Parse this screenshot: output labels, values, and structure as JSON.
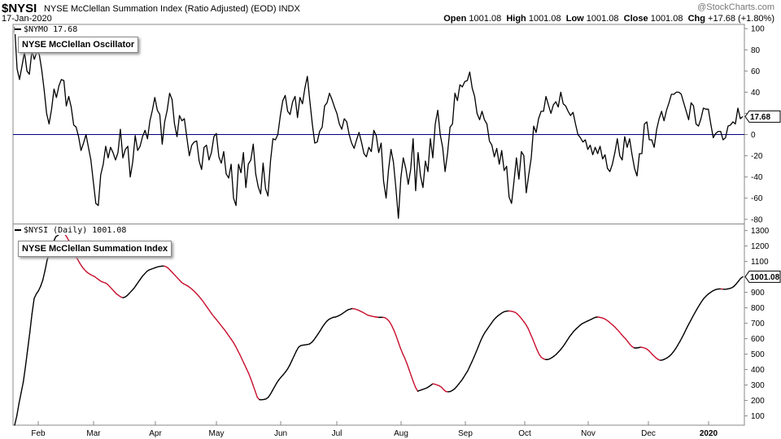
{
  "header": {
    "symbol": "$NYSI",
    "description": "NYSE McClellan Summation Index (Ratio Adjusted) (EOD)  INDX",
    "date": "17-Jan-2020",
    "watermark": "@StockCharts.com",
    "open_label": "Open",
    "open": "1001.08",
    "high_label": "High",
    "high": "1001.08",
    "low_label": "Low",
    "low": "1001.08",
    "close_label": "Close",
    "close": "1001.08",
    "chg_label": "Chg",
    "chg": "+17.68 (+1.80%)"
  },
  "colors": {
    "line": "#000000",
    "falling": "#c8102e",
    "zero_line": "#000080",
    "grid": "#cccccc"
  },
  "chart_data": [
    {
      "type": "line",
      "legend_label": "$NYMO 17.68",
      "box_label": "NYSE McClellan Oscillator",
      "last_value_label": "17.68",
      "x_tick_labels": [
        "Feb",
        "Mar",
        "Apr",
        "May",
        "Jun",
        "Jul",
        "Aug",
        "Sep",
        "Oct",
        "Nov",
        "Dec",
        "2020"
      ],
      "ylim": [
        -84,
        104
      ],
      "y_ticks": [
        100,
        80,
        60,
        40,
        20,
        0,
        -20,
        -40,
        -60,
        -80
      ],
      "reference_line": 0,
      "grid": false,
      "y": [
        102,
        62,
        52,
        65,
        78,
        60,
        57,
        79,
        71,
        78,
        76,
        61,
        42,
        20,
        10,
        24,
        43,
        35,
        46,
        52,
        51,
        27,
        36,
        26,
        9,
        7,
        -2,
        -15,
        -8,
        0,
        -12,
        -24,
        -45,
        -65,
        -67,
        -38,
        -28,
        -11,
        -22,
        -12,
        -17,
        -24,
        -17,
        5,
        -22,
        -14,
        -11,
        -40,
        -26,
        -1,
        -15,
        -11,
        -2,
        4,
        -4,
        13,
        23,
        35,
        23,
        19,
        -9,
        12,
        23,
        39,
        33,
        10,
        -2,
        18,
        13,
        15,
        -3,
        -20,
        -10,
        -7,
        -6,
        -25,
        -33,
        -12,
        -10,
        -24,
        -17,
        -2,
        1,
        -21,
        -27,
        -16,
        -37,
        -41,
        -28,
        -60,
        -67,
        -28,
        -36,
        -17,
        -50,
        -28,
        -24,
        -9,
        -37,
        -49,
        -56,
        -27,
        -51,
        -58,
        -25,
        -4,
        -5,
        0,
        18,
        32,
        37,
        22,
        19,
        31,
        36,
        16,
        35,
        29,
        44,
        55,
        32,
        10,
        -8,
        -7,
        3,
        7,
        27,
        30,
        39,
        33,
        26,
        20,
        10,
        5,
        15,
        12,
        0,
        -8,
        -13,
        -5,
        2,
        -7,
        -18,
        -21,
        -12,
        -16,
        4,
        -1,
        -17,
        -8,
        -44,
        -60,
        -33,
        -14,
        -26,
        -51,
        -79,
        -41,
        -22,
        -32,
        -47,
        -33,
        -4,
        -53,
        -17,
        -39,
        -50,
        -25,
        -35,
        -4,
        -22,
        10,
        23,
        0,
        -12,
        -35,
        -17,
        7,
        10,
        39,
        32,
        47,
        45,
        50,
        51,
        59,
        44,
        36,
        20,
        14,
        22,
        14,
        10,
        -6,
        -10,
        -21,
        -13,
        -28,
        -15,
        -34,
        -30,
        -59,
        -65,
        -44,
        -22,
        -42,
        -16,
        -20,
        -55,
        -38,
        -22,
        8,
        2,
        15,
        22,
        22,
        36,
        28,
        20,
        28,
        31,
        26,
        40,
        29,
        27,
        22,
        18,
        21,
        10,
        0,
        -3,
        -7,
        -5,
        -14,
        -10,
        -19,
        -12,
        -18,
        -11,
        -23,
        -19,
        -32,
        -35,
        -28,
        -17,
        -4,
        -20,
        -24,
        -2,
        -12,
        -4,
        -19,
        -32,
        -39,
        -18,
        -18,
        10,
        12,
        -5,
        -5,
        -12,
        5,
        15,
        22,
        13,
        23,
        30,
        38,
        38,
        40,
        40,
        38,
        30,
        22,
        14,
        30,
        27,
        10,
        8,
        15,
        25,
        24,
        24,
        10,
        -3,
        1,
        3,
        3,
        -5,
        -3,
        8,
        9,
        12,
        10,
        25,
        15,
        17
      ]
    },
    {
      "type": "line",
      "legend_label": "$NYSI (Daily) 1001.08",
      "box_label": "NYSE McClellan Summation Index",
      "last_value_label": "1001.08",
      "x_tick_labels": [
        "Feb",
        "Mar",
        "Apr",
        "May",
        "Jun",
        "Jul",
        "Aug",
        "Sep",
        "Oct",
        "Nov",
        "Dec",
        "2020"
      ],
      "ylim": [
        40,
        1340
      ],
      "y_ticks": [
        1300,
        1200,
        1100,
        1000,
        900,
        800,
        700,
        600,
        500,
        400,
        300,
        200,
        100
      ],
      "grid": false,
      "note_colors": "black = rising, red = falling",
      "y": [
        40,
        100,
        180,
        250,
        320,
        420,
        530,
        640,
        760,
        860,
        890,
        910,
        940,
        980,
        1040,
        1110,
        1150,
        1190,
        1230,
        1260,
        1270,
        1280,
        1290,
        1280,
        1260,
        1235,
        1205,
        1170,
        1140,
        1115,
        1090,
        1068,
        1050,
        1035,
        1024,
        1015,
        1008,
        1001,
        990,
        980,
        970,
        965,
        960,
        950,
        935,
        920,
        905,
        890,
        880,
        870,
        865,
        870,
        880,
        895,
        910,
        925,
        945,
        965,
        985,
        1005,
        1020,
        1035,
        1045,
        1050,
        1055,
        1060,
        1065,
        1068,
        1070,
        1070,
        1065,
        1055,
        1040,
        1025,
        1010,
        995,
        980,
        965,
        955,
        948,
        940,
        930,
        918,
        905,
        890,
        875,
        858,
        840,
        820,
        800,
        780,
        760,
        742,
        725,
        708,
        690,
        672,
        655,
        635,
        615,
        595,
        575,
        550,
        522,
        495,
        465,
        435,
        405,
        375,
        340,
        300,
        260,
        220,
        205,
        205,
        206,
        210,
        220,
        240,
        265,
        290,
        315,
        335,
        352,
        368,
        385,
        405,
        430,
        460,
        490,
        520,
        545,
        555,
        558,
        560,
        562,
        565,
        575,
        590,
        610,
        630,
        652,
        675,
        695,
        712,
        725,
        732,
        738,
        740,
        745,
        752,
        760,
        770,
        780,
        788,
        792,
        795,
        792,
        788,
        782,
        775,
        768,
        760,
        752,
        748,
        745,
        742,
        740,
        738,
        738,
        738,
        735,
        725,
        710,
        685,
        655,
        620,
        580,
        540,
        505,
        475,
        440,
        400,
        360,
        320,
        285,
        260,
        265,
        270,
        275,
        280,
        288,
        298,
        308,
        305,
        300,
        295,
        285,
        270,
        258,
        256,
        258,
        265,
        275,
        290,
        308,
        325,
        345,
        368,
        390,
        420,
        450,
        482,
        515,
        550,
        585,
        615,
        640,
        660,
        680,
        700,
        720,
        735,
        748,
        758,
        768,
        775,
        778,
        780,
        778,
        775,
        770,
        760,
        745,
        728,
        710,
        690,
        665,
        632,
        600,
        565,
        530,
        500,
        480,
        470,
        465,
        465,
        470,
        478,
        488,
        500,
        515,
        530,
        548,
        568,
        590,
        612,
        630,
        648,
        662,
        675,
        688,
        698,
        705,
        712,
        718,
        725,
        732,
        738,
        740,
        738,
        735,
        730,
        722,
        712,
        700,
        688,
        675,
        660,
        645,
        628,
        612,
        598,
        580,
        562,
        548,
        540,
        540,
        542,
        545,
        542,
        538,
        530,
        518,
        502,
        488,
        475,
        465,
        460,
        462,
        468,
        475,
        485,
        498,
        515,
        535,
        558,
        582,
        608,
        635,
        665,
        692,
        718,
        745,
        770,
        795,
        818,
        840,
        860,
        875,
        888,
        898,
        908,
        915,
        920,
        922,
        922,
        920,
        920,
        922,
        925,
        930,
        940,
        955,
        972,
        990,
        1001
      ]
    }
  ]
}
